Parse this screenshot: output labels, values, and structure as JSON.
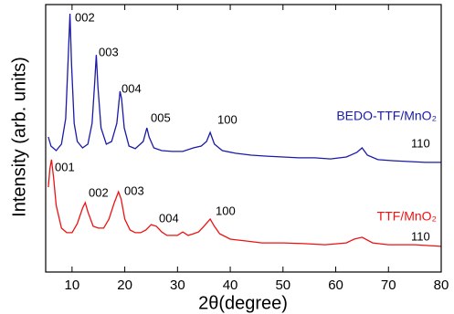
{
  "chart_data": {
    "type": "line",
    "x_label": "2θ(degree)",
    "y_label": "Intensity (arb. units)",
    "xlim": [
      5,
      80
    ],
    "xticks": [
      10,
      20,
      30,
      40,
      50,
      60,
      70,
      80
    ],
    "ylim": [
      0,
      100
    ],
    "series": [
      {
        "name": "BEDO-TTF/MnO₂",
        "color": "#1a1aa6",
        "x": [
          5.5,
          6,
          7,
          8,
          8.8,
          9.3,
          9.6,
          9.9,
          10.4,
          11,
          12,
          13,
          13.8,
          14.3,
          14.6,
          14.9,
          15.5,
          16.5,
          17.5,
          18.5,
          19.1,
          19.4,
          19.9,
          20.8,
          22,
          23.5,
          24.2,
          24.6,
          25.5,
          27,
          29,
          31,
          33,
          34.5,
          35.5,
          36.2,
          37,
          38.5,
          41,
          44,
          47,
          50,
          53,
          56,
          59,
          62,
          64,
          65,
          66,
          68,
          71,
          74,
          77,
          80
        ],
        "values": [
          50.5,
          47.1,
          45.4,
          47.8,
          57.3,
          81.2,
          96.6,
          77.8,
          55.6,
          48.8,
          46.4,
          47.8,
          55.6,
          71,
          81.2,
          69.3,
          53.9,
          47.8,
          48.8,
          55.6,
          67.6,
          64.8,
          53.9,
          47.1,
          46.1,
          48.8,
          53.9,
          50.5,
          46.4,
          45.4,
          45.1,
          45.1,
          46.4,
          47.1,
          48.8,
          52.2,
          47.8,
          45.4,
          44.4,
          43.7,
          43.3,
          43,
          42.7,
          42.7,
          42.3,
          43,
          44.7,
          46.4,
          43.7,
          42,
          41.6,
          41.3,
          41,
          41
        ],
        "annotations": [
          "002",
          "003",
          "004",
          "005",
          "100",
          "110"
        ]
      },
      {
        "name": "TTF/MnO₂",
        "color": "#ee1111",
        "x": [
          5.5,
          5.8,
          6.1,
          6.5,
          7,
          8,
          9,
          10,
          11,
          12,
          12.5,
          13,
          14,
          15,
          16,
          17,
          18,
          18.8,
          19.3,
          20,
          21,
          22,
          23,
          24,
          25,
          26,
          27,
          28,
          30,
          31,
          32,
          33,
          34,
          35,
          36.2,
          37,
          38,
          40,
          43,
          46,
          50,
          54,
          58,
          62,
          63.5,
          65,
          67,
          70,
          75,
          80
        ],
        "values": [
          31.7,
          38.6,
          42,
          35.2,
          24.9,
          16.4,
          14.7,
          14.7,
          18.1,
          23.9,
          25.9,
          22.5,
          17.1,
          16.4,
          16.4,
          19.8,
          25.9,
          30,
          27.3,
          19.8,
          15.7,
          14.7,
          14.7,
          15.7,
          17.7,
          17.1,
          15,
          13.7,
          13.7,
          15,
          13.7,
          14.3,
          15,
          17.1,
          19.8,
          17.1,
          14.3,
          12.3,
          11.6,
          10.9,
          10.9,
          10.6,
          10.2,
          10.9,
          12.3,
          13,
          10.9,
          10.2,
          10.2,
          9.6
        ],
        "annotations": [
          "001",
          "002",
          "003",
          "004",
          "100",
          "110"
        ]
      }
    ]
  }
}
